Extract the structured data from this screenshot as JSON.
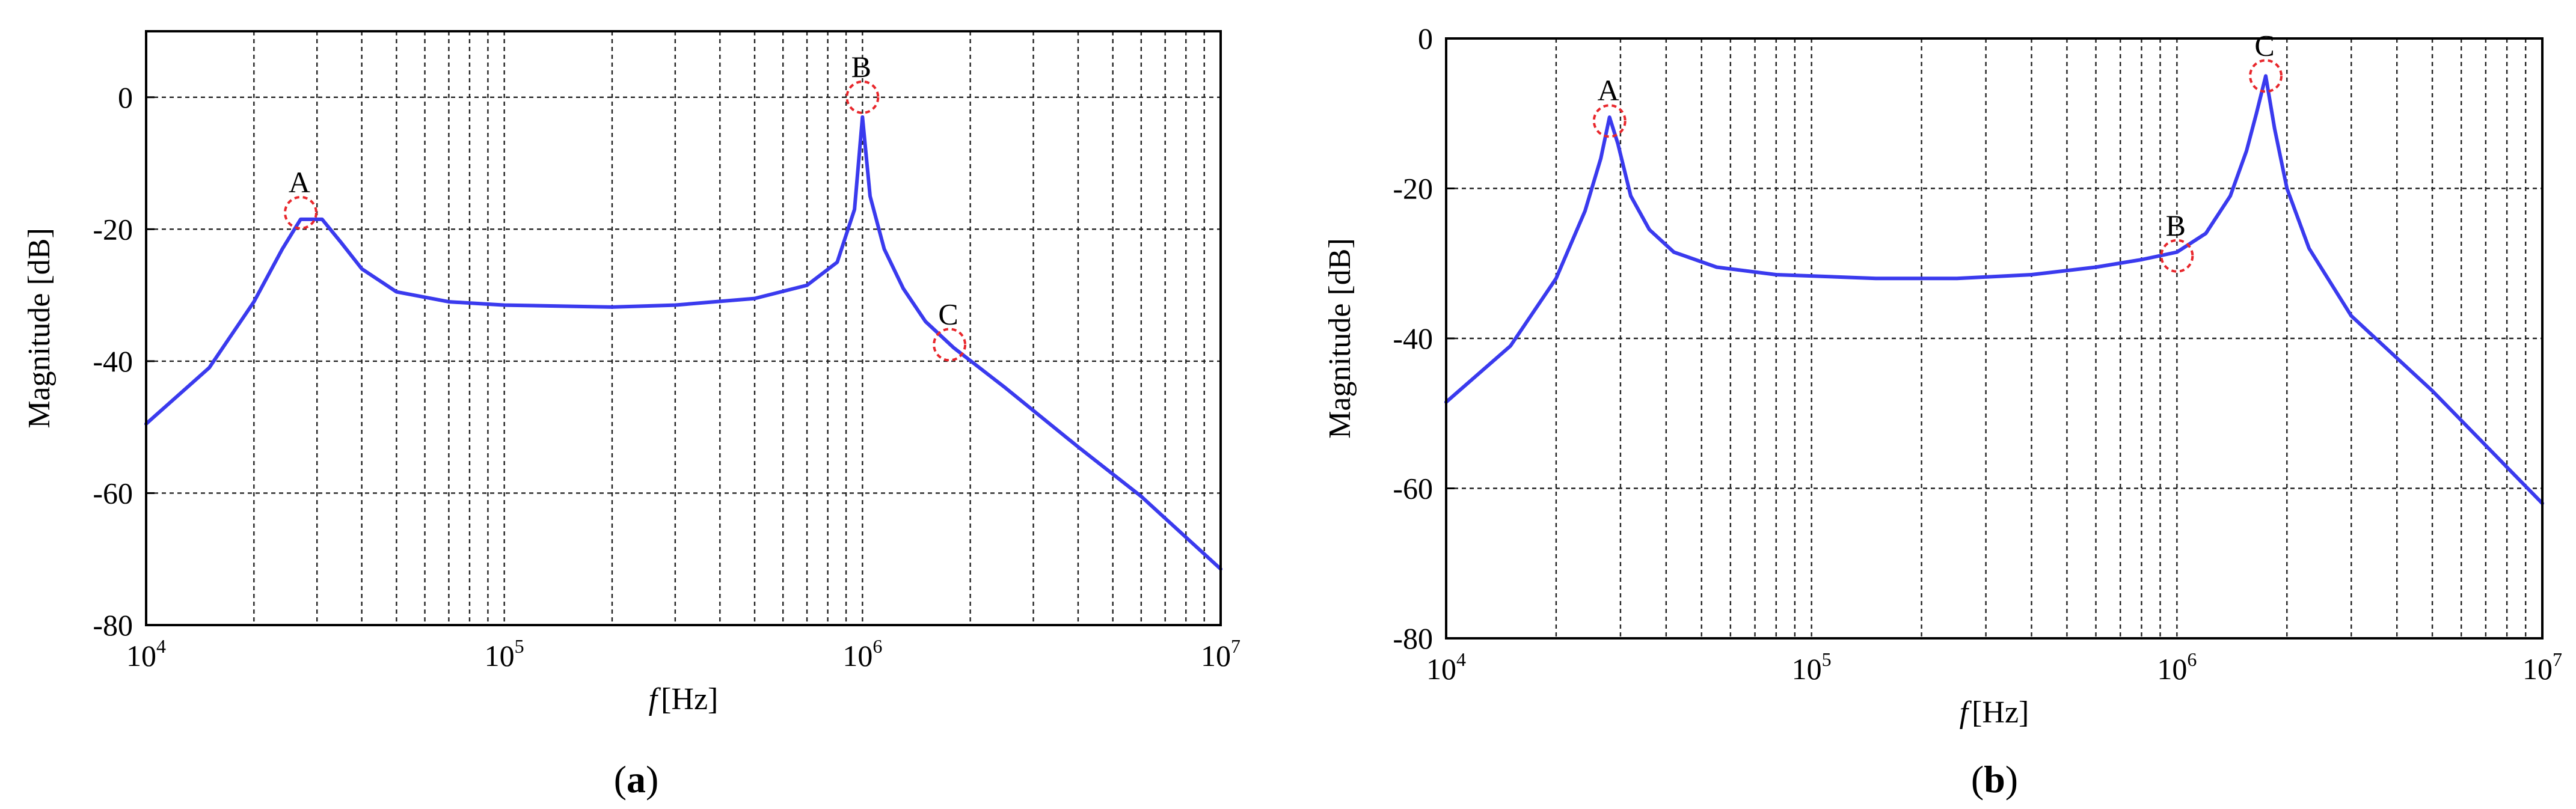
{
  "chart_data": [
    {
      "type": "line",
      "caption": "(a)",
      "caption_letter": "a",
      "xscale": "log",
      "xlim": [
        10000,
        10000000
      ],
      "ylim": [
        -80,
        10
      ],
      "ylabel": "Magnitude [dB]",
      "xlabel_var": "f",
      "xlabel_unit": "[Hz]",
      "yticks": [
        0,
        -20,
        -40,
        -60,
        -80
      ],
      "ytick_labels": [
        "0",
        "-20",
        "-40",
        "-60",
        "-80"
      ],
      "xticks": [
        10000,
        100000,
        1000000,
        10000000
      ],
      "xtick_base": "10",
      "xtick_exps": [
        "4",
        "5",
        "6",
        "7"
      ],
      "grid": true,
      "series": [
        {
          "color": "#3a3aee",
          "x": [
            10000,
            15000,
            20000,
            24000,
            27000,
            29000,
            31000,
            35000,
            40000,
            50000,
            70000,
            100000,
            200000,
            300000,
            500000,
            700000,
            850000,
            950000,
            1000000,
            1050000,
            1150000,
            1300000,
            1500000,
            1800000,
            2500000,
            4000000,
            6000000,
            10000000
          ],
          "y": [
            -49.5,
            -41,
            -31,
            -23,
            -18.5,
            -18.5,
            -18.5,
            -22,
            -26,
            -29.5,
            -31,
            -31.5,
            -31.8,
            -31.5,
            -30.5,
            -28.5,
            -25,
            -17,
            -3,
            -15,
            -23,
            -29,
            -34,
            -38,
            -44,
            -53,
            -60.5,
            -71.5
          ]
        }
      ],
      "markers": [
        {
          "label": "A",
          "x": 27000,
          "y": -17.5
        },
        {
          "label": "B",
          "x": 1000000,
          "y": 0
        },
        {
          "label": "C",
          "x": 1750000,
          "y": -37.5
        }
      ]
    },
    {
      "type": "line",
      "caption": "(b)",
      "caption_letter": "b",
      "xscale": "log",
      "xlim": [
        10000,
        10000000
      ],
      "ylim": [
        -80,
        0
      ],
      "ylabel": "Magnitude [dB]",
      "xlabel_var": "f",
      "xlabel_unit": "[Hz]",
      "yticks": [
        0,
        -20,
        -40,
        -60,
        -80
      ],
      "ytick_labels": [
        "0",
        "-20",
        "-40",
        "-60",
        "-80"
      ],
      "xticks": [
        10000,
        100000,
        1000000,
        10000000
      ],
      "xtick_base": "10",
      "xtick_exps": [
        "4",
        "5",
        "6",
        "7"
      ],
      "grid": true,
      "series": [
        {
          "color": "#3a3aee",
          "x": [
            10000,
            15000,
            20000,
            24000,
            26500,
            28000,
            29500,
            32000,
            36000,
            42000,
            55000,
            80000,
            150000,
            250000,
            400000,
            600000,
            800000,
            1000000,
            1200000,
            1400000,
            1550000,
            1650000,
            1750000,
            1850000,
            2000000,
            2300000,
            3000000,
            5000000,
            10000000
          ],
          "y": [
            -48.5,
            -41,
            -32,
            -23,
            -16,
            -10.5,
            -14,
            -21,
            -25.5,
            -28.5,
            -30.5,
            -31.5,
            -32,
            -32,
            -31.5,
            -30.5,
            -29.5,
            -28.5,
            -26,
            -21,
            -15,
            -10,
            -5,
            -12,
            -20,
            -28,
            -37,
            -47,
            -62
          ]
        }
      ],
      "markers": [
        {
          "label": "A",
          "x": 28000,
          "y": -11
        },
        {
          "label": "B",
          "x": 1000000,
          "y": -29
        },
        {
          "label": "C",
          "x": 1750000,
          "y": -5
        }
      ]
    }
  ]
}
